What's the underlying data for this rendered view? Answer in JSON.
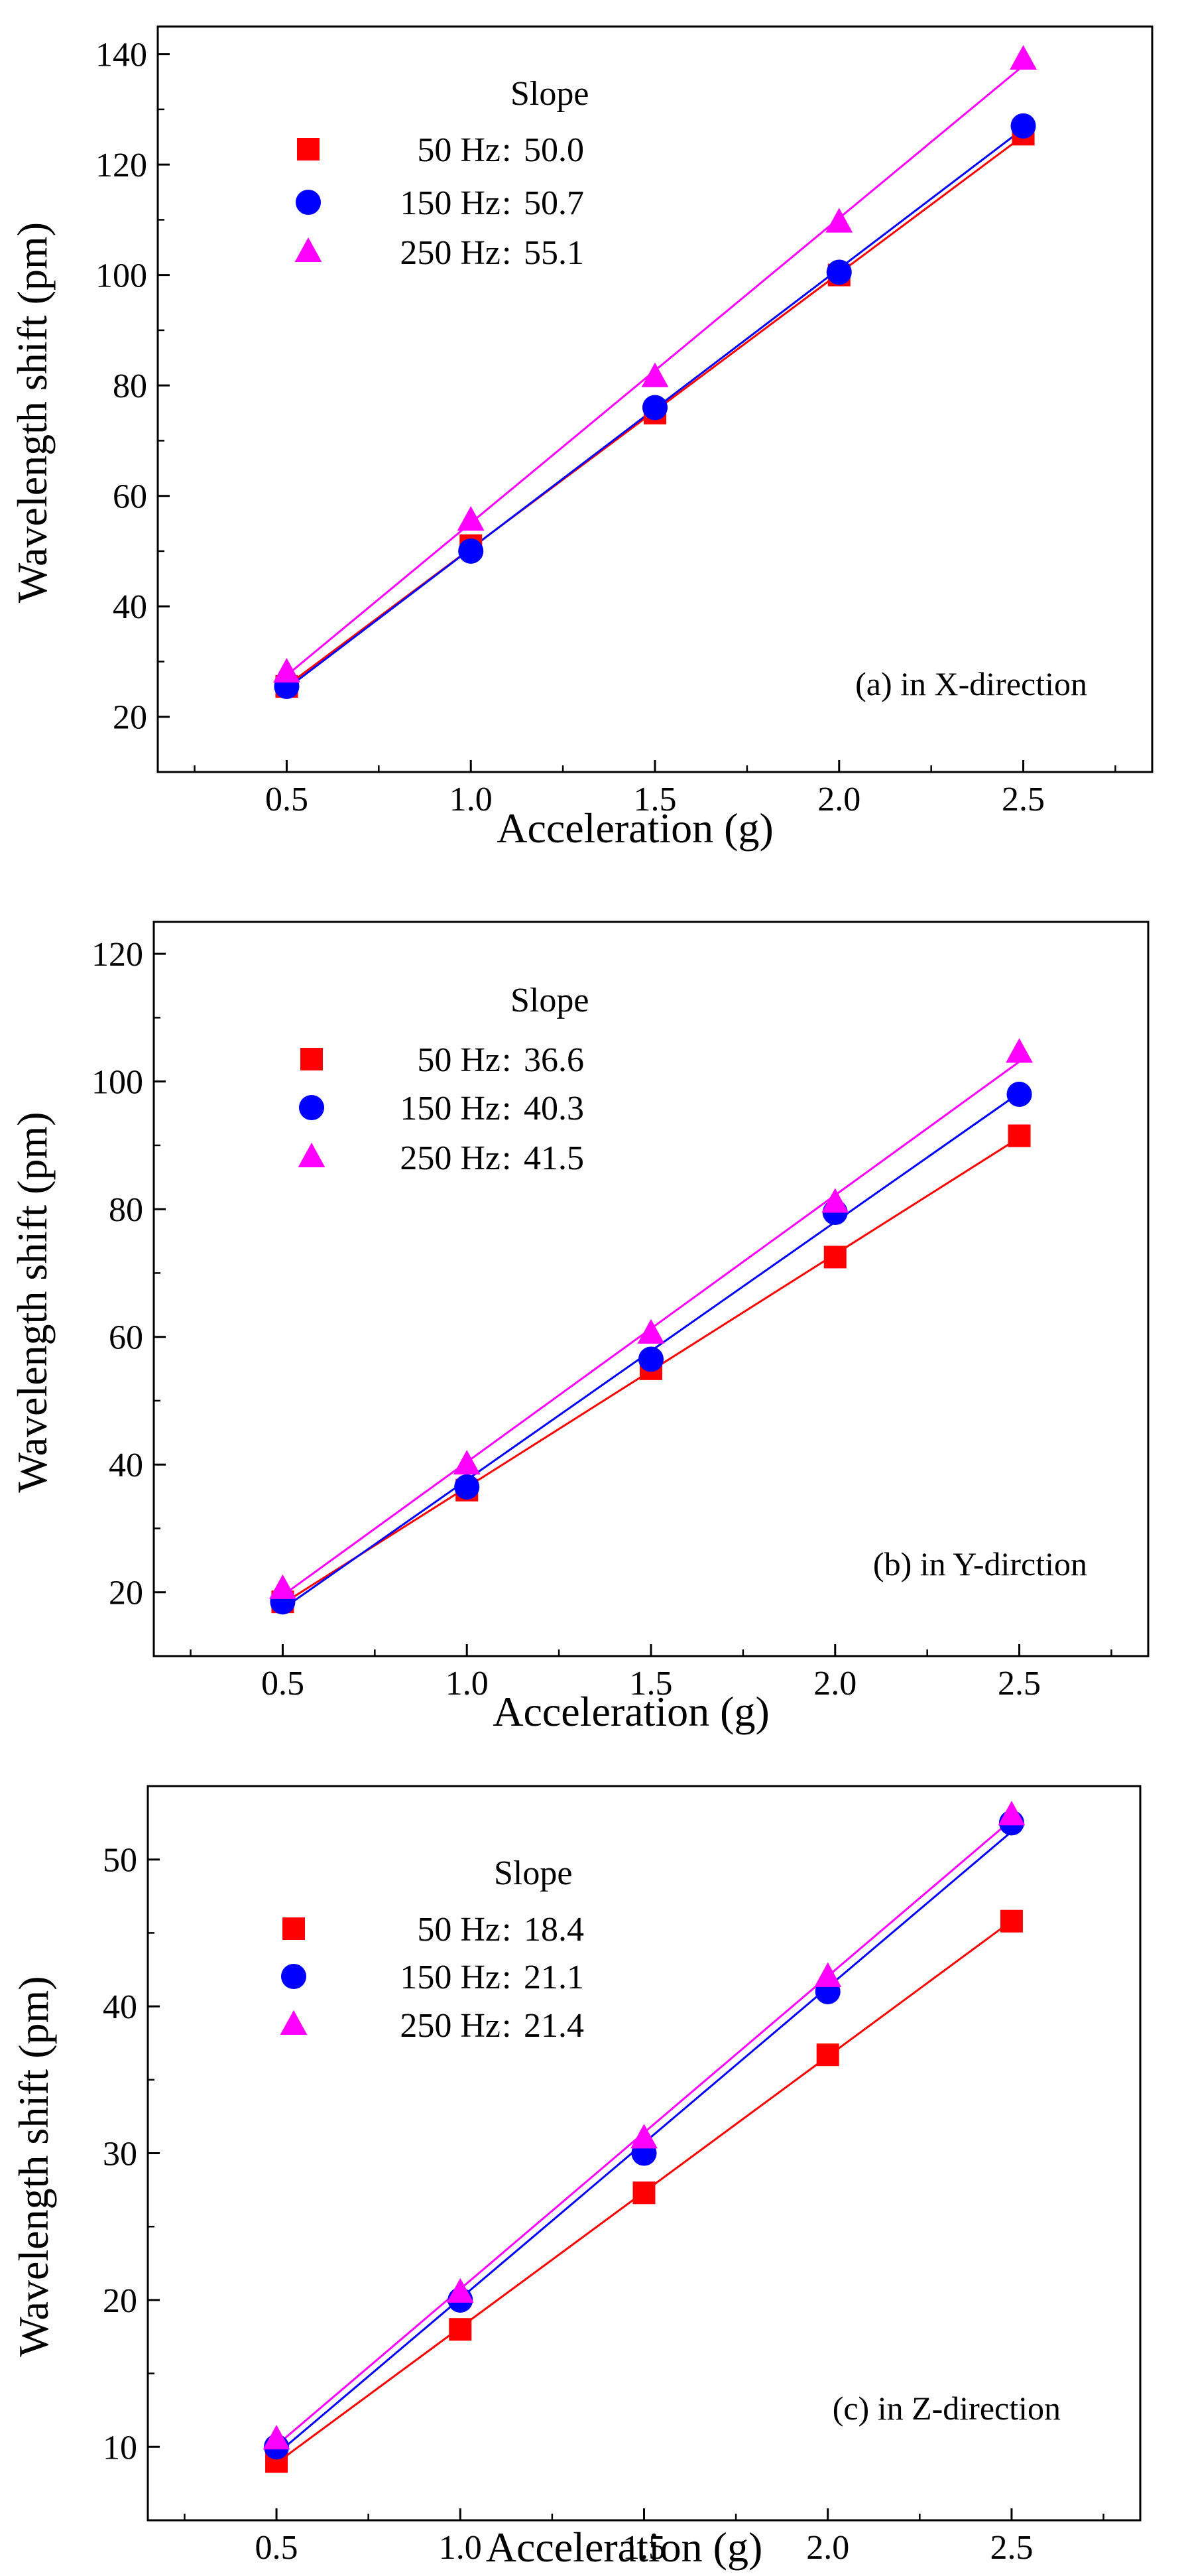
{
  "chart_data": [
    {
      "panel": "a",
      "type": "scatter",
      "annotation": "(a) in X-direction",
      "xlabel": "Acceleration (g)",
      "ylabel": "Wavelength shift (pm)",
      "xlim": [
        0.15,
        2.85
      ],
      "ylim": [
        10,
        145
      ],
      "xticks": [
        0.5,
        1.0,
        1.5,
        2.0,
        2.5
      ],
      "xtick_labels": [
        "0.5",
        "1.0",
        "1.5",
        "2.0",
        "2.5"
      ],
      "yticks": [
        20,
        40,
        60,
        80,
        100,
        120,
        140
      ],
      "ytick_labels": [
        "20",
        "40",
        "60",
        "80",
        "100",
        "120",
        "140"
      ],
      "y_minor_step": 10,
      "legend_title": "Slope",
      "series": [
        {
          "name": "50 Hz",
          "slope": 50.0,
          "slope_label": "50.0",
          "marker": "square",
          "color": "#ff0000",
          "x": [
            0.5,
            1.0,
            1.5,
            2.0,
            2.5
          ],
          "values": [
            25.5,
            51,
            75,
            100,
            125.5
          ]
        },
        {
          "name": "150 Hz",
          "slope": 50.7,
          "slope_label": "50.7",
          "marker": "circle",
          "color": "#0000ff",
          "x": [
            0.5,
            1.0,
            1.5,
            2.0,
            2.5
          ],
          "values": [
            25.5,
            50,
            76,
            100.5,
            127
          ]
        },
        {
          "name": "250 Hz",
          "slope": 55.1,
          "slope_label": "55.1",
          "marker": "triangle",
          "color": "#ff00ff",
          "x": [
            0.5,
            1.0,
            1.5,
            2.0,
            2.5
          ],
          "values": [
            28,
            55.5,
            81.5,
            109.5,
            139
          ]
        }
      ]
    },
    {
      "panel": "b",
      "type": "scatter",
      "annotation": "(b) in Y-dirction",
      "xlabel": "Acceleration (g)",
      "ylabel": "Wavelength shift (pm)",
      "xlim": [
        0.15,
        2.85
      ],
      "ylim": [
        10,
        125
      ],
      "xticks": [
        0.5,
        1.0,
        1.5,
        2.0,
        2.5
      ],
      "xtick_labels": [
        "0.5",
        "1.0",
        "1.5",
        "2.0",
        "2.5"
      ],
      "yticks": [
        20,
        40,
        60,
        80,
        100,
        120
      ],
      "ytick_labels": [
        "20",
        "40",
        "60",
        "80",
        "100",
        "120"
      ],
      "y_minor_step": 10,
      "legend_title": "Slope",
      "series": [
        {
          "name": "50 Hz",
          "slope": 36.6,
          "slope_label": "36.6",
          "marker": "square",
          "color": "#ff0000",
          "x": [
            0.5,
            1.0,
            1.5,
            2.0,
            2.5
          ],
          "values": [
            18.5,
            36,
            55,
            72.5,
            91.5
          ]
        },
        {
          "name": "150 Hz",
          "slope": 40.3,
          "slope_label": "40.3",
          "marker": "circle",
          "color": "#0000ff",
          "x": [
            0.5,
            1.0,
            1.5,
            2.0,
            2.5
          ],
          "values": [
            18.5,
            36.5,
            56.5,
            79.5,
            98
          ]
        },
        {
          "name": "250 Hz",
          "slope": 41.5,
          "slope_label": "41.5",
          "marker": "triangle",
          "color": "#ff00ff",
          "x": [
            0.5,
            1.0,
            1.5,
            2.0,
            2.5
          ],
          "values": [
            20.5,
            40,
            60.5,
            81,
            104.5
          ]
        }
      ]
    },
    {
      "panel": "c",
      "type": "scatter",
      "annotation": "(c) in Z-direction",
      "xlabel": "Acceleration (g)",
      "ylabel": "Wavelength shift (pm)",
      "xlim": [
        0.15,
        2.85
      ],
      "ylim": [
        5,
        55
      ],
      "xticks": [
        0.5,
        1.0,
        1.5,
        2.0,
        2.5
      ],
      "xtick_labels": [
        "0.5",
        "1.0",
        "1.5",
        "2.0",
        "2.5"
      ],
      "yticks": [
        10,
        20,
        30,
        40,
        50
      ],
      "ytick_labels": [
        "10",
        "20",
        "30",
        "40",
        "50"
      ],
      "y_minor_step": 5,
      "legend_title": "Slope",
      "series": [
        {
          "name": "50 Hz",
          "slope": 18.4,
          "slope_label": "18.4",
          "marker": "square",
          "color": "#ff0000",
          "x": [
            0.5,
            1.0,
            1.5,
            2.0,
            2.5
          ],
          "values": [
            9,
            18,
            27.3,
            36.7,
            45.8
          ]
        },
        {
          "name": "150 Hz",
          "slope": 21.1,
          "slope_label": "21.1",
          "marker": "circle",
          "color": "#0000ff",
          "x": [
            0.5,
            1.0,
            1.5,
            2.0,
            2.5
          ],
          "values": [
            10,
            20,
            30,
            41,
            52.5
          ]
        },
        {
          "name": "250 Hz",
          "slope": 21.4,
          "slope_label": "21.4",
          "marker": "triangle",
          "color": "#ff00ff",
          "x": [
            0.5,
            1.0,
            1.5,
            2.0,
            2.5
          ],
          "values": [
            10.5,
            20.5,
            31,
            42,
            53
          ]
        }
      ]
    }
  ]
}
